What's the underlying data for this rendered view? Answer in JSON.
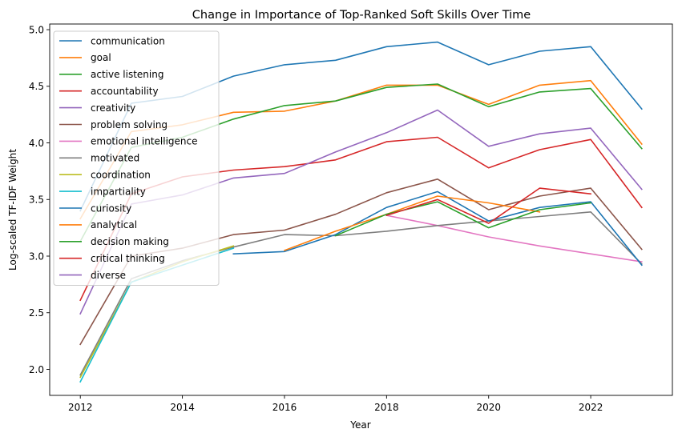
{
  "chart_data": {
    "type": "line",
    "title": "Change in Importance of Top-Ranked Soft Skills Over Time",
    "xlabel": "Year",
    "ylabel": "Log-scaled TF-IDF Weight",
    "xlim": [
      2011.4,
      2023.6
    ],
    "ylim": [
      1.77,
      5.05
    ],
    "xticks": [
      2012,
      2014,
      2016,
      2018,
      2020,
      2022
    ],
    "yticks": [
      2.0,
      2.5,
      3.0,
      3.5,
      4.0,
      4.5,
      5.0
    ],
    "ytick_labels": [
      "2.0",
      "2.5",
      "3.0",
      "3.5",
      "4.0",
      "4.5",
      "5.0"
    ],
    "grid": false,
    "legend_position": "top-left",
    "series": [
      {
        "name": "communication",
        "color": "#1f77b4",
        "x": [
          2012,
          2013,
          2014,
          2015,
          2016,
          2017,
          2018,
          2019,
          2020,
          2021,
          2022,
          2023
        ],
        "values": [
          3.4,
          4.35,
          4.41,
          4.59,
          4.69,
          4.73,
          4.85,
          4.89,
          4.69,
          4.81,
          4.85,
          4.3
        ]
      },
      {
        "name": "goal",
        "color": "#ff7f0e",
        "x": [
          2012,
          2013,
          2014,
          2015,
          2016,
          2017,
          2018,
          2019,
          2020,
          2021,
          2022,
          2023
        ],
        "values": [
          3.33,
          4.1,
          4.16,
          4.27,
          4.28,
          4.37,
          4.51,
          4.51,
          4.34,
          4.51,
          4.55,
          3.99
        ]
      },
      {
        "name": "active listening",
        "color": "#2ca02c",
        "x": [
          2012,
          2013,
          2014,
          2015,
          2016,
          2017,
          2018,
          2019,
          2020,
          2021,
          2022,
          2023
        ],
        "values": [
          3.13,
          3.96,
          4.05,
          4.21,
          4.33,
          4.37,
          4.49,
          4.52,
          4.32,
          4.45,
          4.48,
          3.95
        ]
      },
      {
        "name": "accountability",
        "color": "#d62728",
        "x": [
          2012,
          2013,
          2014,
          2015,
          2016,
          2017,
          2018,
          2019,
          2020,
          2021,
          2022,
          2023
        ],
        "values": [
          2.61,
          3.55,
          3.7,
          3.76,
          3.79,
          3.85,
          4.01,
          4.05,
          3.78,
          3.94,
          4.03,
          3.43
        ]
      },
      {
        "name": "creativity",
        "color": "#9467bd",
        "x": [
          2012,
          2013,
          2014,
          2015,
          2016,
          2017,
          2018,
          2019,
          2020,
          2021,
          2022,
          2023
        ],
        "values": [
          2.49,
          3.46,
          3.54,
          3.69,
          3.73,
          3.92,
          4.09,
          4.29,
          3.97,
          4.08,
          4.13,
          3.59
        ]
      },
      {
        "name": "problem solving",
        "color": "#8c564b",
        "x": [
          2012,
          2013,
          2014,
          2015,
          2016,
          2017,
          2018,
          2019,
          2020,
          2021,
          2022,
          2023
        ],
        "values": [
          2.22,
          3.0,
          3.07,
          3.19,
          3.23,
          3.37,
          3.56,
          3.68,
          3.41,
          3.53,
          3.6,
          3.06
        ]
      },
      {
        "name": "emotional intelligence",
        "color": "#e377c2",
        "x": [
          2018,
          2019,
          2020,
          2021,
          2022,
          2023
        ],
        "values": [
          3.36,
          3.27,
          3.17,
          3.09,
          3.02,
          2.95
        ]
      },
      {
        "name": "motivated",
        "color": "#7f7f7f",
        "x": [
          2012,
          2013,
          2014,
          2015,
          2016,
          2017,
          2018,
          2019,
          2020,
          2021,
          2022,
          2023
        ],
        "values": [
          1.95,
          2.8,
          2.96,
          3.08,
          3.19,
          3.18,
          3.22,
          3.27,
          3.31,
          3.35,
          3.39,
          2.93
        ]
      },
      {
        "name": "coordination",
        "color": "#bcbd22",
        "x": [
          2012,
          2013,
          2014,
          2015
        ],
        "values": [
          1.93,
          2.77,
          2.95,
          3.09
        ]
      },
      {
        "name": "impartiality",
        "color": "#17becf",
        "x": [
          2012,
          2013,
          2014,
          2015
        ],
        "values": [
          1.89,
          2.77,
          2.92,
          3.07
        ]
      },
      {
        "name": "curiosity",
        "color": "#1f77b4",
        "x": [
          2015,
          2016,
          2017,
          2018,
          2019,
          2020,
          2021,
          2022,
          2023
        ],
        "values": [
          3.02,
          3.04,
          3.19,
          3.43,
          3.57,
          3.31,
          3.43,
          3.48,
          2.92
        ]
      },
      {
        "name": "analytical",
        "color": "#ff7f0e",
        "x": [
          2016,
          2017,
          2018,
          2019,
          2020,
          2021
        ],
        "values": [
          3.05,
          3.22,
          3.37,
          3.53,
          3.47,
          3.39
        ]
      },
      {
        "name": "decision making",
        "color": "#2ca02c",
        "x": [
          2017,
          2018,
          2019,
          2020,
          2021,
          2022
        ],
        "values": [
          3.18,
          3.37,
          3.48,
          3.25,
          3.41,
          3.47
        ]
      },
      {
        "name": "critical thinking",
        "color": "#d62728",
        "x": [
          2018,
          2019,
          2020,
          2021,
          2022
        ],
        "values": [
          3.36,
          3.5,
          3.29,
          3.6,
          3.55
        ]
      },
      {
        "name": "diverse",
        "color": "#9467bd",
        "x": [],
        "values": []
      }
    ]
  }
}
